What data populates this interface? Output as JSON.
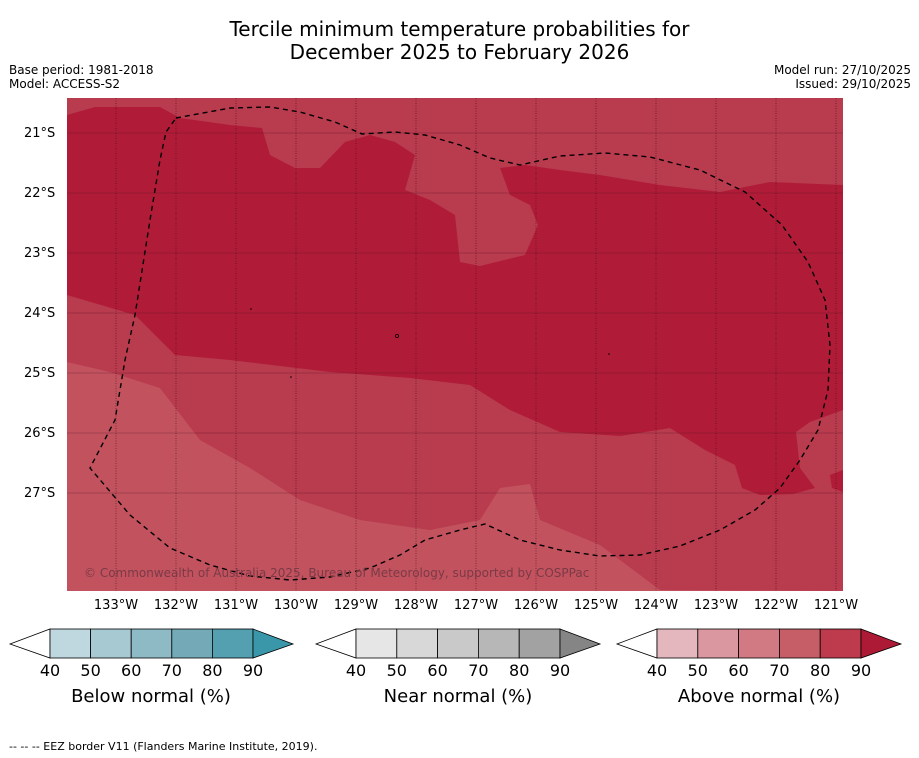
{
  "title": {
    "line1": "Tercile minimum temperature probabilities for",
    "line2": "December 2025 to February 2026"
  },
  "meta": {
    "base_period": "Base period: 1981-2018",
    "model": "Model: ACCESS-S2",
    "model_run": "Model run: 27/10/2025",
    "issued": "Issued: 29/10/2025"
  },
  "map": {
    "latitude_labels": [
      "21°S",
      "22°S",
      "23°S",
      "24°S",
      "25°S",
      "26°S",
      "27°S"
    ],
    "longitude_labels": [
      "133°W",
      "132°W",
      "131°W",
      "130°W",
      "129°W",
      "128°W",
      "127°W",
      "126°W",
      "125°W",
      "124°W",
      "123°W",
      "122°W",
      "121°W"
    ],
    "copyright": "© Commonwealth of Australia 2025, Bureau of Meteorology, supported by COSPPac",
    "colors": {
      "above_70_80": "#b83b4e",
      "above_80_90": "#b01c38",
      "above_60_70": "#c2525e"
    }
  },
  "legend": {
    "ticks": [
      "40",
      "50",
      "60",
      "70",
      "80",
      "90"
    ],
    "below": {
      "title": "Below normal (%)",
      "colors": [
        "#bfd7de",
        "#a7c9d1",
        "#8ebac5",
        "#74aab8",
        "#54a0b0"
      ],
      "arrow_color": "#3a97a9"
    },
    "near": {
      "title": "Near normal (%)",
      "colors": [
        "#e6e6e6",
        "#d8d8d8",
        "#c9c9c9",
        "#b7b7b7",
        "#a2a2a2"
      ],
      "arrow_color": "#858585"
    },
    "above": {
      "title": "Above normal (%)",
      "colors": [
        "#e4b7be",
        "#da979f",
        "#d27a84",
        "#c65e68",
        "#bd3b4d"
      ],
      "arrow_color": "#ad1a35"
    }
  },
  "footer": {
    "eez_note": "--  --  -- EEZ border V11 (Flanders Marine Institute, 2019)."
  }
}
